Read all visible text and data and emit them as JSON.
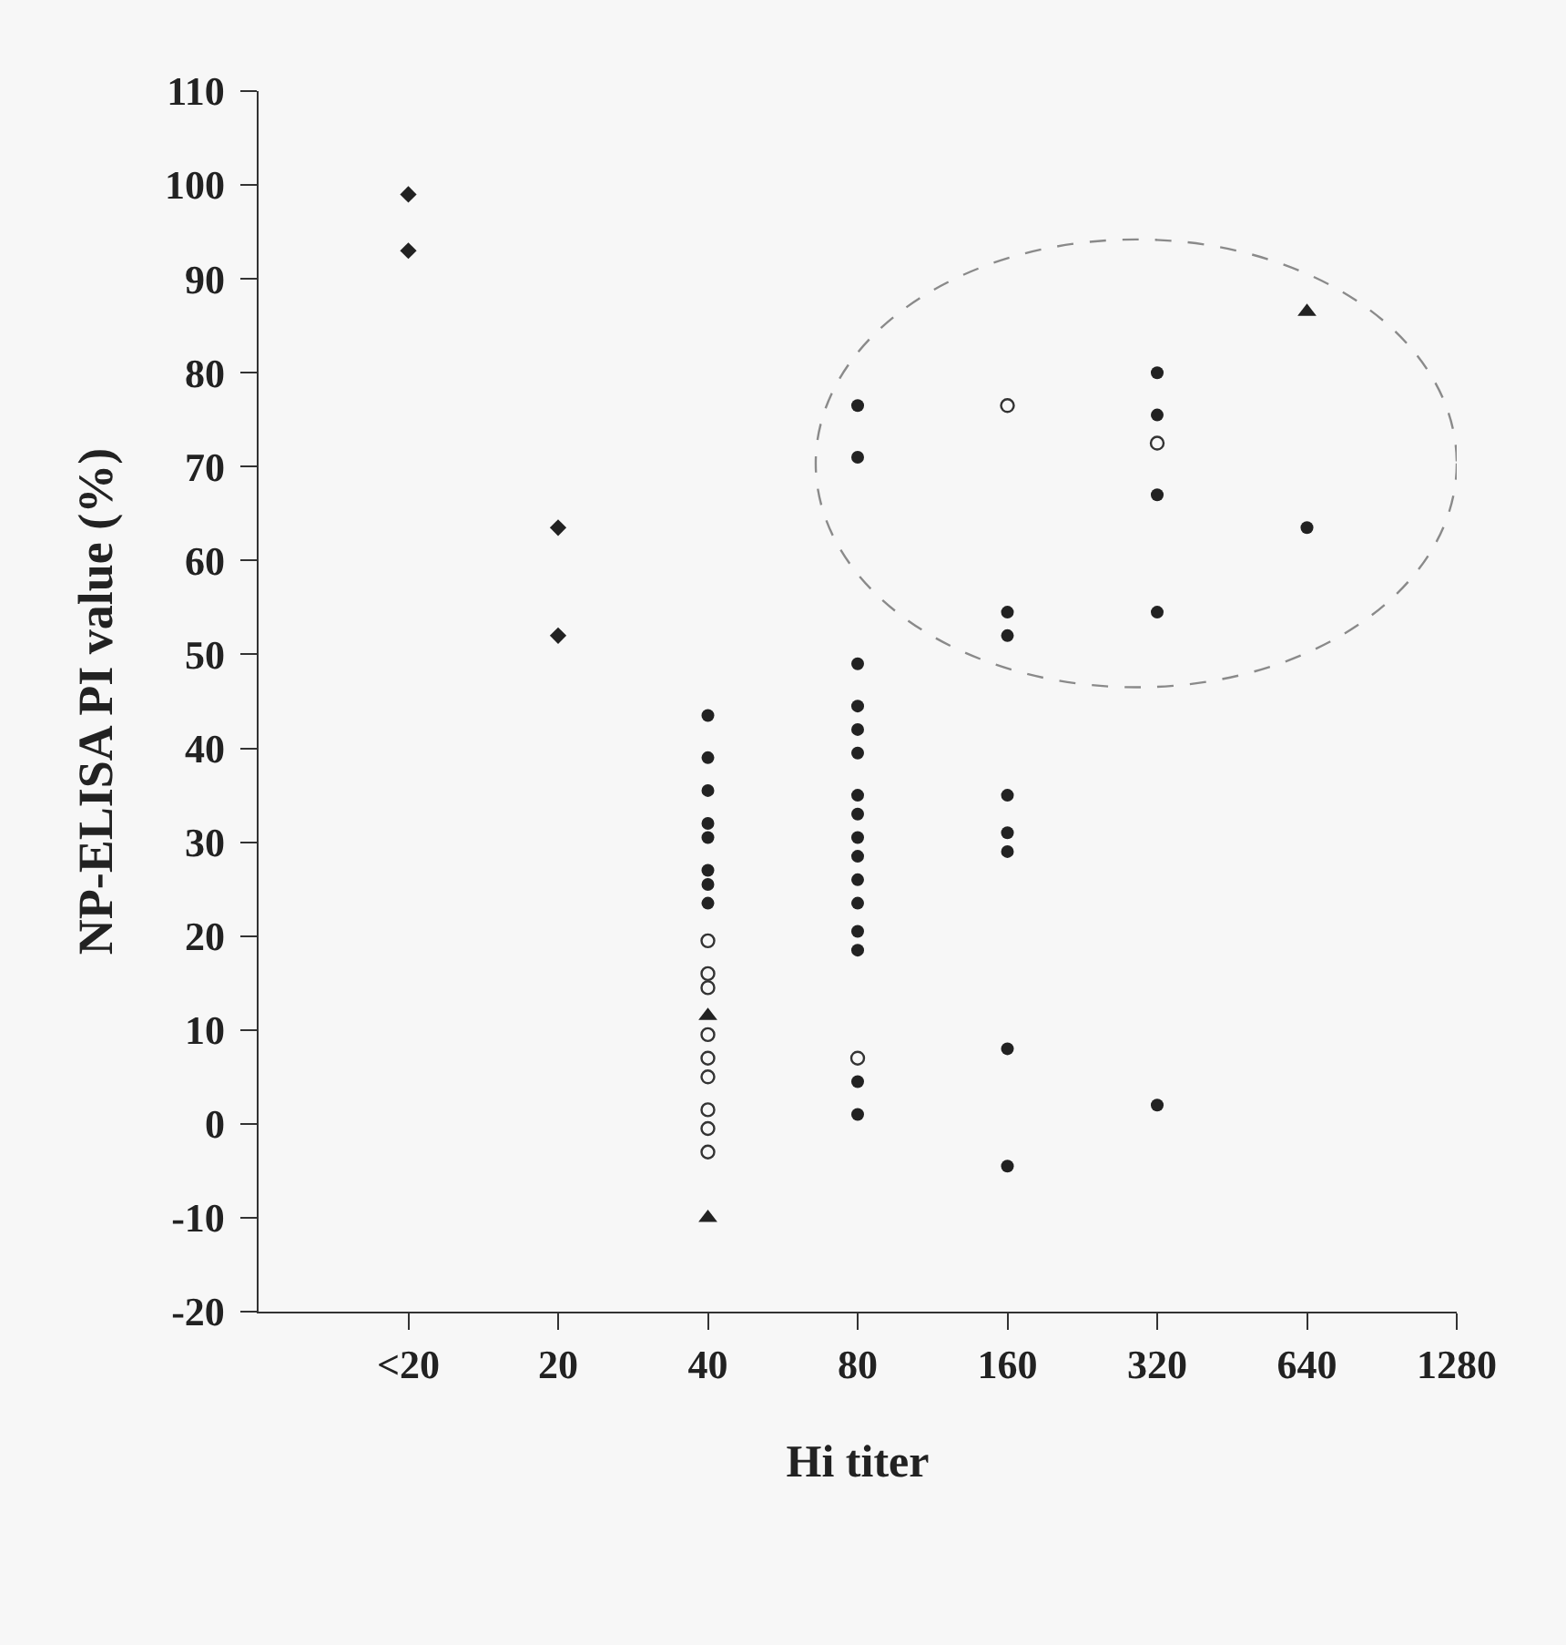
{
  "chart_data": {
    "type": "scatter",
    "xlabel": "Hi titer",
    "ylabel": "NP-ELISA PI value (%)",
    "categories": [
      "<20",
      "20",
      "40",
      "80",
      "160",
      "320",
      "640",
      "1280"
    ],
    "ylim": [
      -20,
      110
    ],
    "yticks": [
      -20,
      -10,
      0,
      10,
      20,
      30,
      40,
      50,
      60,
      70,
      80,
      90,
      100,
      110
    ],
    "series": [
      {
        "marker": "circle",
        "color": "#222222",
        "x": [
          "40",
          "40",
          "40",
          "40",
          "40",
          "40",
          "40",
          "40",
          "80",
          "80",
          "80",
          "80",
          "80",
          "80",
          "80",
          "80",
          "80",
          "80",
          "80",
          "80",
          "80",
          "80",
          "80",
          "80",
          "160",
          "160",
          "160",
          "160",
          "160",
          "160",
          "160",
          "320",
          "320",
          "320",
          "320",
          "320",
          "640"
        ],
        "values": [
          43.5,
          39,
          35.5,
          32,
          30.5,
          27,
          25.5,
          23.5,
          76.5,
          71,
          49,
          44.5,
          42,
          39.5,
          35,
          33,
          30.5,
          28.5,
          26,
          23.5,
          20.5,
          18.5,
          4.5,
          1,
          54.5,
          52,
          35,
          31,
          29,
          8,
          -4.5,
          80,
          75.5,
          67,
          54.5,
          2,
          63.5
        ]
      },
      {
        "marker": "circle-open",
        "color": "#333333",
        "x": [
          "40",
          "40",
          "40",
          "40",
          "40",
          "40",
          "40",
          "40",
          "40",
          "80",
          "160",
          "320"
        ],
        "values": [
          19.5,
          16,
          14.5,
          9.5,
          7,
          5,
          1.5,
          -0.5,
          -3,
          7,
          76.5,
          72.5
        ]
      },
      {
        "marker": "triangle",
        "color": "#222222",
        "x": [
          "40",
          "40",
          "640"
        ],
        "values": [
          11.5,
          -10,
          86.5
        ]
      },
      {
        "marker": "diamond",
        "color": "#222222",
        "x": [
          "<20",
          "<20",
          "20",
          "20"
        ],
        "values": [
          99,
          93,
          63.5,
          52
        ]
      }
    ]
  }
}
